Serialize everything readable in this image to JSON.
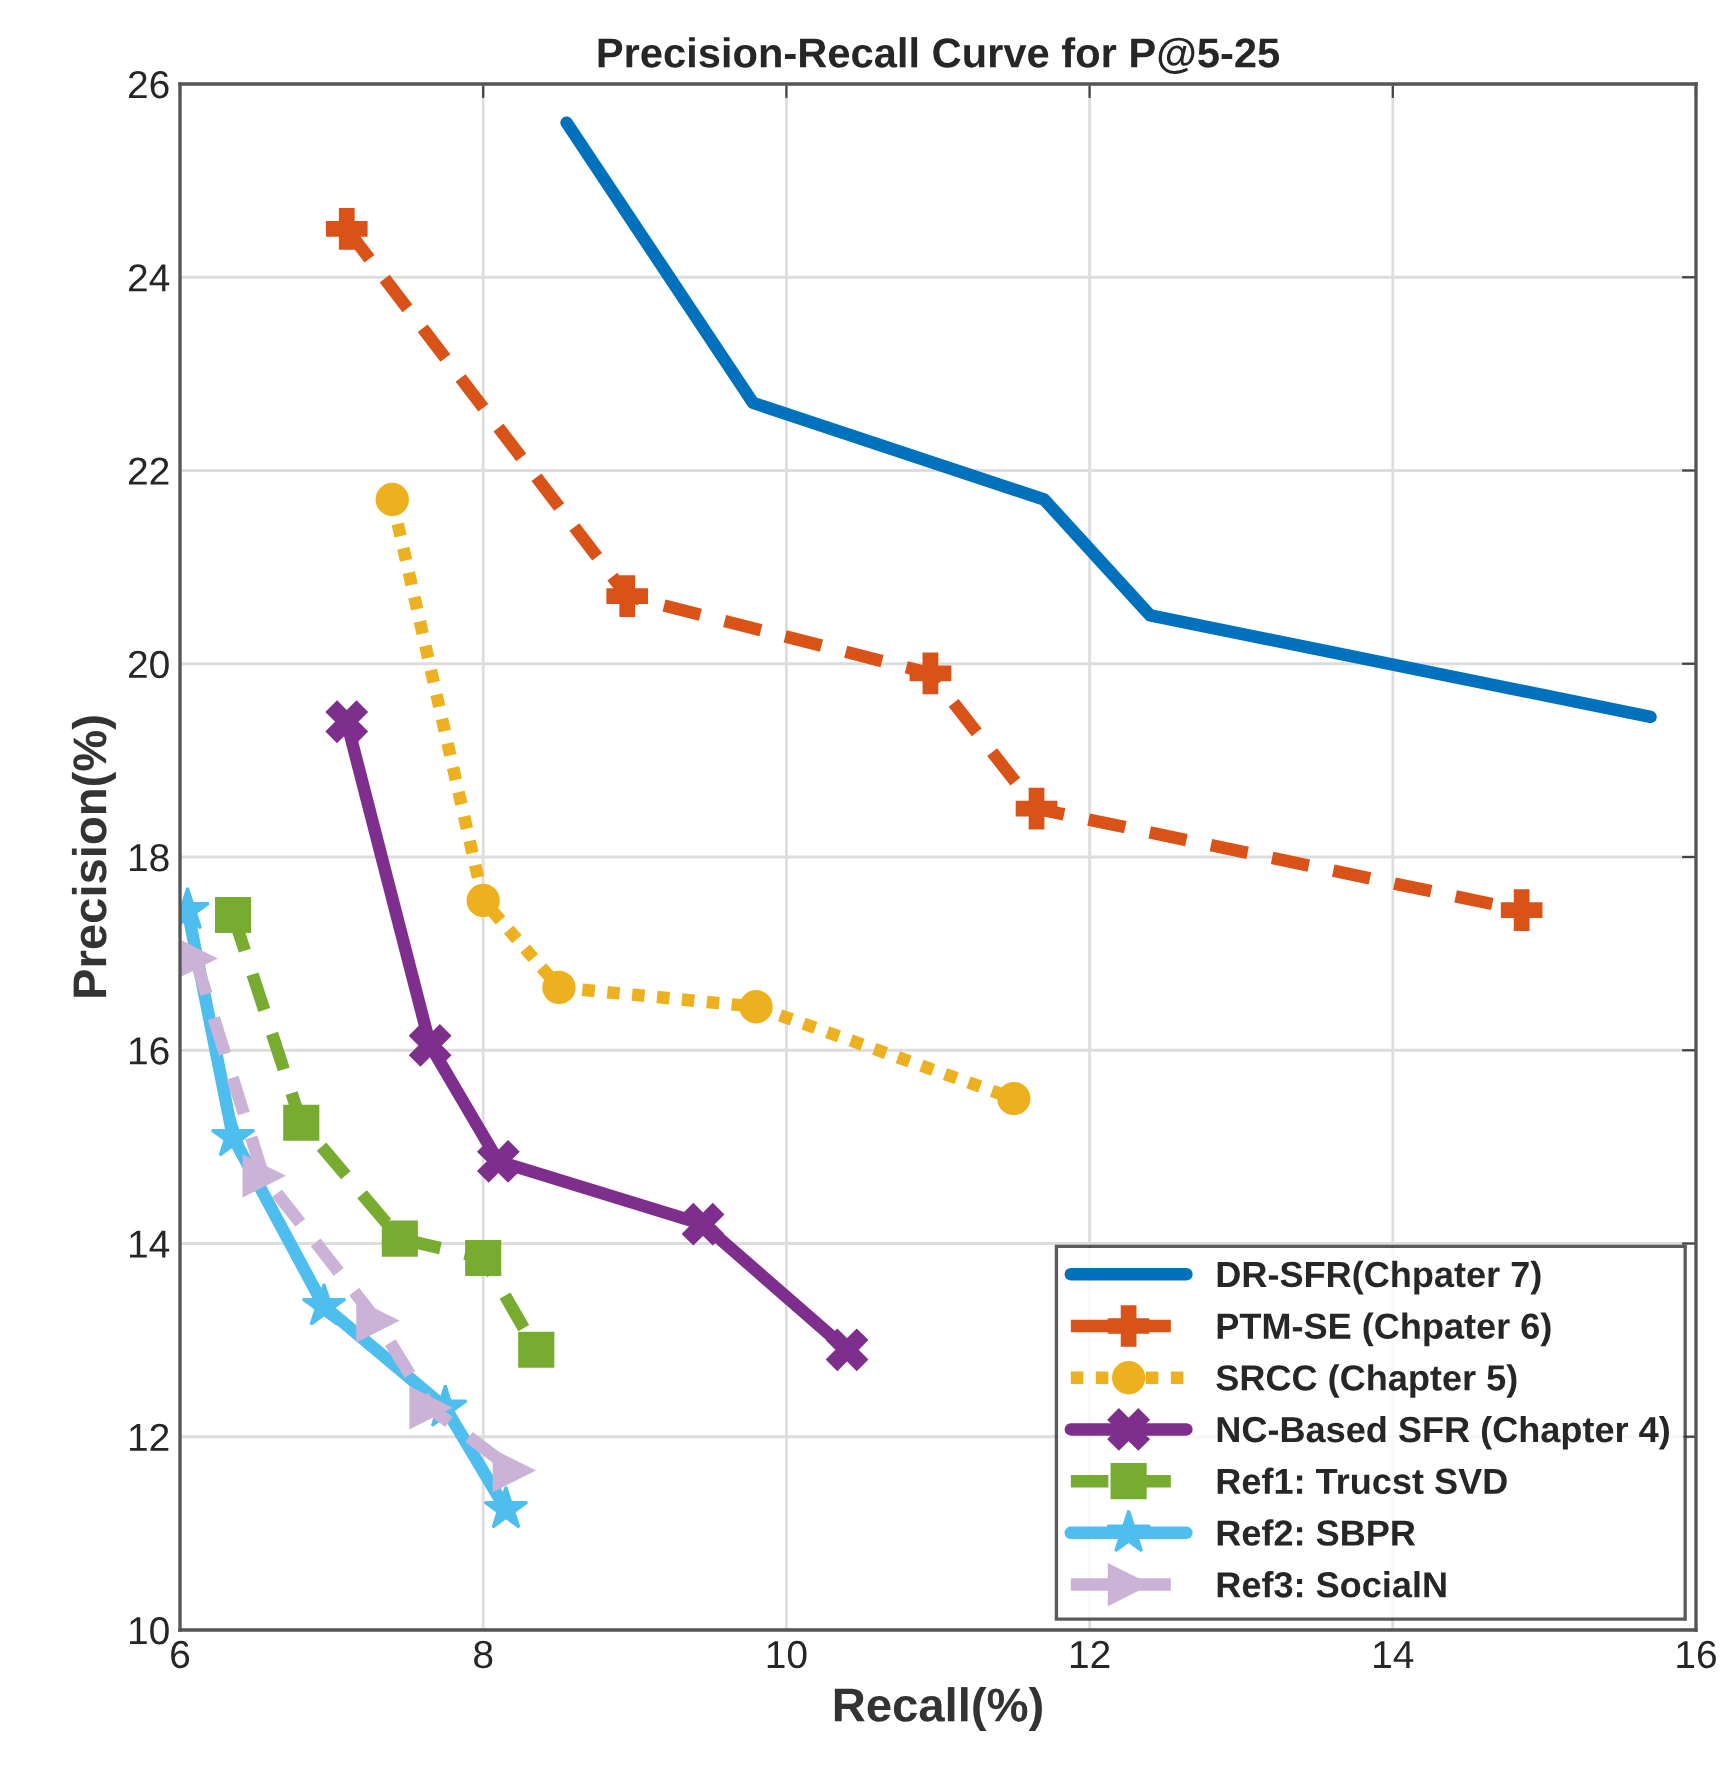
{
  "chart_data": {
    "type": "line",
    "title": "Precision-Recall Curve for P@5-25",
    "xlabel": "Recall(%)",
    "ylabel": "Precision(%)",
    "xlim": [
      6,
      16
    ],
    "ylim": [
      10,
      26
    ],
    "xticks": [
      6,
      8,
      10,
      12,
      14,
      16
    ],
    "yticks": [
      10,
      12,
      14,
      16,
      18,
      20,
      22,
      24,
      26
    ],
    "grid": true,
    "legend": "bottom right",
    "series": [
      {
        "name": "DR-SFR(Chpater 7)",
        "color": "#0072bd",
        "marker": "none",
        "line_style": "solid",
        "x": [
          8.55,
          9.78,
          11.7,
          12.4,
          15.7
        ],
        "values": [
          25.6,
          22.7,
          21.7,
          20.5,
          19.45
        ]
      },
      {
        "name": "PTM-SE (Chpater 6)",
        "color": "#d95319",
        "marker": "plus",
        "line_style": "dashed",
        "x": [
          7.1,
          8.95,
          10.95,
          11.65,
          14.85
        ],
        "values": [
          24.5,
          20.7,
          19.9,
          18.5,
          17.45
        ]
      },
      {
        "name": "SRCC (Chapter 5)",
        "color": "#edb120",
        "marker": "circle",
        "line_style": "dotted",
        "x": [
          7.4,
          8.0,
          8.5,
          9.8,
          11.5
        ],
        "values": [
          21.7,
          17.55,
          16.65,
          16.45,
          15.5
        ]
      },
      {
        "name": "NC-Based SFR (Chapter 4)",
        "color": "#7e2f8e",
        "marker": "cross",
        "line_style": "solid",
        "x": [
          7.1,
          7.65,
          8.1,
          9.45,
          10.4
        ],
        "values": [
          19.4,
          16.05,
          14.85,
          14.2,
          12.9
        ]
      },
      {
        "name": "Ref1: Trucst SVD",
        "color": "#77ac30",
        "marker": "square",
        "line_style": "dashed",
        "x": [
          6.35,
          6.8,
          7.45,
          8.0,
          8.35
        ],
        "values": [
          17.4,
          15.25,
          14.05,
          13.85,
          12.9
        ]
      },
      {
        "name": "Ref2: SBPR",
        "color": "#4dbeee",
        "marker": "star",
        "line_style": "solid",
        "x": [
          6.05,
          6.35,
          6.95,
          7.75,
          8.15
        ],
        "values": [
          17.45,
          15.1,
          13.35,
          12.3,
          11.25
        ]
      },
      {
        "name": "Ref3: SocialN",
        "color": "#cbb3d8",
        "marker": "triangle",
        "line_style": "dashed",
        "x": [
          6.1,
          6.55,
          7.3,
          7.65,
          8.2
        ],
        "values": [
          16.95,
          14.7,
          13.2,
          12.3,
          11.65
        ]
      }
    ]
  }
}
